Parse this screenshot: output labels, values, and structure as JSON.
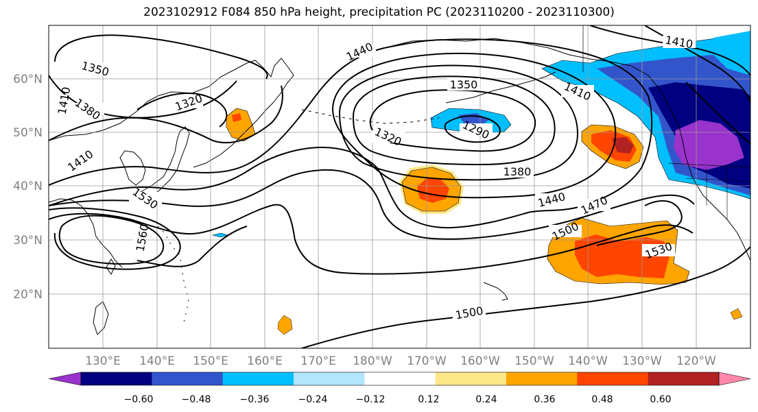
{
  "title": "2023102912 F084 850 hPa height, precipitation PC (2023110200 - 2023110300)",
  "map": {
    "lat_labels": [
      "60°N",
      "50°N",
      "40°N",
      "30°N",
      "20°N"
    ],
    "lon_labels": [
      "130°E",
      "140°E",
      "150°E",
      "160°E",
      "170°E",
      "180°W",
      "170°W",
      "160°W",
      "150°W",
      "140°W",
      "130°W",
      "120°W"
    ],
    "contour_labels": [
      "1350",
      "1380",
      "1410",
      "1320",
      "1440",
      "1410",
      "1530",
      "1560",
      "1350",
      "1320",
      "1290",
      "1410",
      "1410",
      "1380",
      "1440",
      "1470",
      "1500",
      "1530",
      "1500"
    ]
  },
  "colorbar": {
    "tick_labels": [
      "−0.60",
      "−0.48",
      "−0.36",
      "−0.24",
      "−0.12",
      "0.12",
      "0.24",
      "0.36",
      "0.48",
      "0.60"
    ],
    "colors": [
      "#9933cc",
      "#000080",
      "#3355cc",
      "#00bfff",
      "#b3e5ff",
      "#ffffff",
      "#ffe88a",
      "#ffa500",
      "#ff4500",
      "#b22222",
      "#ff88aa"
    ]
  }
}
